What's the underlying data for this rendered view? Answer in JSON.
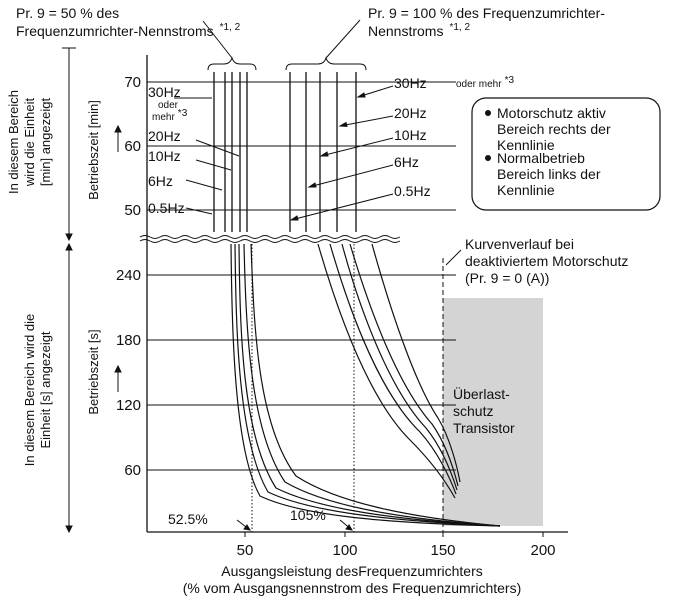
{
  "top_left_label": {
    "line1": "Pr. 9 = 50 % des",
    "line2": "Frequenzumrichter-Nennstroms",
    "sup": "*1, 2"
  },
  "top_right_label": {
    "line1": "Pr. 9 = 100 % des Frequenzumrichter-",
    "line2": "Nennstroms",
    "sup": "*1, 2"
  },
  "left_outer_top": {
    "line1": "In diesem Bereich",
    "line2": "wird die Einheit",
    "line3": "[min] angezeigt"
  },
  "left_outer_bottom": {
    "line1": "In diesem Bereich wird die",
    "line2": "Einheit [s] angezeigt"
  },
  "ylabel_top": "Betriebszeit [min]",
  "ylabel_bottom": "Betriebszeit [s]",
  "yticks_top": [
    "70",
    "60",
    "50"
  ],
  "yticks_bottom": [
    "240",
    "180",
    "120",
    "60"
  ],
  "xticks": [
    "50",
    "100",
    "150",
    "200"
  ],
  "xlabel_line1": "Ausgangsleistung desFrequenzumrichters",
  "xlabel_line2": "(% vom Ausgangsnennstrom des Frequenzumrichters)",
  "left_freq_labels": {
    "f30": "30Hz",
    "oder": "oder",
    "mehr": "mehr",
    "mehr_sup": "*3",
    "f20": "20Hz",
    "f10": "10Hz",
    "f6": "6Hz",
    "f05": "0.5Hz"
  },
  "right_freq_labels": {
    "f30": "30Hz",
    "oder_mehr": "oder mehr",
    "oder_mehr_sup": "*3",
    "f20": "20Hz",
    "f10": "10Hz",
    "f6": "6Hz",
    "f05": "0.5Hz"
  },
  "legend": {
    "item1_line1": "Motorschutz aktiv",
    "item1_line2": "Bereich rechts der",
    "item1_line3": "Kennlinie",
    "item2_line1": "Normalbetrieb",
    "item2_line2": "Bereich links der",
    "item2_line3": "Kennlinie"
  },
  "deactivated_note": {
    "line1": "Kurvenverlauf bei",
    "line2": "deaktiviertem Motorschutz",
    "line3": "(Pr. 9 = 0 (A))"
  },
  "transistor_box": {
    "line1": "Überlast-",
    "line2": "schutz",
    "line3": "Transistor"
  },
  "marker_525": "52.5%",
  "marker_105": "105%",
  "colors": {
    "shade": "#d4d4d4",
    "line": "#111111"
  }
}
